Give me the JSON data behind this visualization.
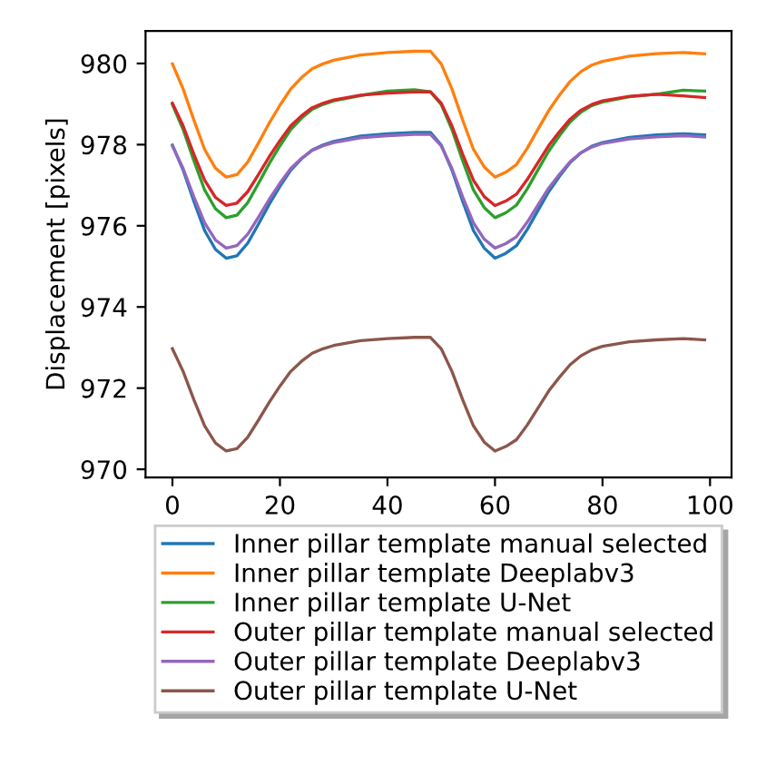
{
  "chart_data": {
    "type": "line",
    "ylabel": "Displacement [pixels]",
    "x": [
      0,
      2,
      4,
      6,
      8,
      10,
      12,
      14,
      16,
      18,
      20,
      22,
      24,
      26,
      28,
      30,
      35,
      40,
      45,
      48,
      50,
      52,
      54,
      56,
      58,
      60,
      62,
      64,
      66,
      68,
      70,
      72,
      74,
      76,
      78,
      80,
      85,
      90,
      95,
      99
    ],
    "series": [
      {
        "name": "Inner pillar template manual selected",
        "color": "#1f77b4",
        "values": [
          977.99,
          977.37,
          976.6,
          975.88,
          975.42,
          975.2,
          975.26,
          975.57,
          976.04,
          976.53,
          976.97,
          977.37,
          977.65,
          977.87,
          977.99,
          978.08,
          978.21,
          978.27,
          978.3,
          978.3,
          977.99,
          977.37,
          976.6,
          975.88,
          975.45,
          975.2,
          975.32,
          975.51,
          975.91,
          976.38,
          976.84,
          977.22,
          977.56,
          977.8,
          977.96,
          978.05,
          978.18,
          978.24,
          978.27,
          978.24
        ]
      },
      {
        "name": "Inner pillar template Deeplabv3",
        "color": "#ff7f0e",
        "values": [
          979.99,
          979.37,
          978.6,
          977.88,
          977.42,
          977.2,
          977.26,
          977.57,
          978.04,
          978.53,
          978.97,
          979.37,
          979.65,
          979.87,
          979.99,
          980.08,
          980.21,
          980.27,
          980.3,
          980.3,
          979.99,
          979.37,
          978.6,
          977.88,
          977.45,
          977.2,
          977.32,
          977.51,
          977.91,
          978.38,
          978.84,
          979.22,
          979.56,
          979.8,
          979.96,
          980.05,
          980.18,
          980.24,
          980.27,
          980.24
        ]
      },
      {
        "name": "Inner pillar template U-Net",
        "color": "#2ca02c",
        "values": [
          978.99,
          978.37,
          977.6,
          976.88,
          976.42,
          976.2,
          976.26,
          976.57,
          977.04,
          977.53,
          977.97,
          978.37,
          978.65,
          978.87,
          978.99,
          979.08,
          979.21,
          979.32,
          979.35,
          979.3,
          978.99,
          978.37,
          977.6,
          976.88,
          976.45,
          976.2,
          976.32,
          976.51,
          976.91,
          977.38,
          977.84,
          978.22,
          978.56,
          978.8,
          978.96,
          979.05,
          979.18,
          979.24,
          979.34,
          979.32
        ]
      },
      {
        "name": "Outer pillar template manual selected",
        "color": "#d62728",
        "values": [
          979.02,
          978.46,
          977.76,
          977.12,
          976.7,
          976.5,
          976.56,
          976.84,
          977.26,
          977.7,
          978.1,
          978.46,
          978.71,
          978.91,
          979.02,
          979.1,
          979.22,
          979.27,
          979.3,
          979.3,
          979.02,
          978.46,
          977.76,
          977.12,
          976.72,
          976.5,
          976.61,
          976.78,
          977.14,
          977.56,
          977.98,
          978.32,
          978.63,
          978.85,
          978.99,
          979.08,
          979.19,
          979.24,
          979.2,
          979.16
        ]
      },
      {
        "name": "Outer pillar template Deeplabv3",
        "color": "#9467bd",
        "values": [
          977.97,
          977.41,
          976.71,
          976.07,
          975.65,
          975.45,
          975.51,
          975.79,
          976.21,
          976.65,
          977.05,
          977.41,
          977.66,
          977.86,
          977.97,
          978.05,
          978.17,
          978.22,
          978.25,
          978.25,
          977.97,
          977.41,
          976.71,
          976.07,
          975.67,
          975.45,
          975.56,
          975.73,
          976.09,
          976.51,
          976.93,
          977.27,
          977.58,
          977.8,
          977.94,
          978.03,
          978.14,
          978.19,
          978.22,
          978.19
        ]
      },
      {
        "name": "Outer pillar template U-Net",
        "color": "#8c564b",
        "values": [
          972.97,
          972.41,
          971.71,
          971.07,
          970.65,
          970.45,
          970.51,
          970.79,
          971.21,
          971.65,
          972.05,
          972.41,
          972.66,
          972.86,
          972.97,
          973.05,
          973.17,
          973.22,
          973.25,
          973.25,
          972.97,
          972.41,
          971.71,
          971.07,
          970.67,
          970.45,
          970.56,
          970.73,
          971.09,
          971.51,
          971.93,
          972.27,
          972.58,
          972.8,
          972.94,
          973.03,
          973.14,
          973.19,
          973.22,
          973.19
        ]
      }
    ],
    "xlim": [
      -5,
      104
    ],
    "ylim": [
      969.8,
      980.8
    ],
    "xticks": [
      0,
      20,
      40,
      60,
      80,
      100
    ],
    "yticks": [
      970,
      972,
      974,
      976,
      978,
      980
    ],
    "grid": false,
    "legend": "bottom",
    "marker": "none",
    "line_style": "solid"
  }
}
